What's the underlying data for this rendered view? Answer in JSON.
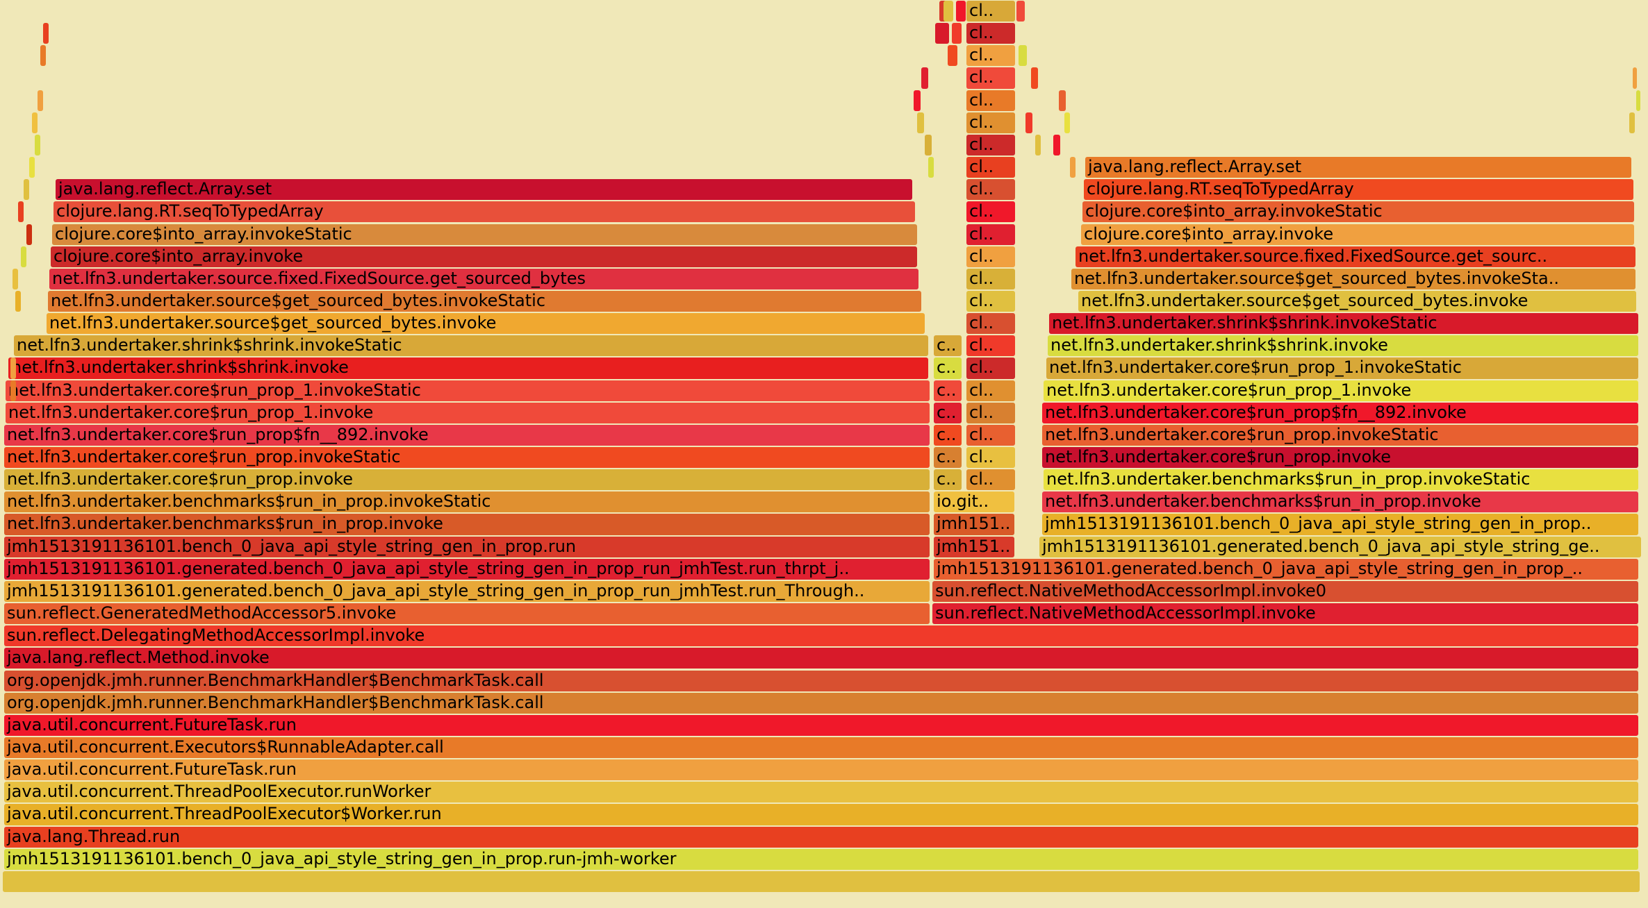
{
  "flamegraph": {
    "colors": [
      "#c8102e",
      "#e8503a",
      "#d88a3c",
      "#cc2a2a",
      "#e03040",
      "#e07a30",
      "#f0a830",
      "#d8a838",
      "#e81f1f",
      "#f04a3a",
      "#e83848",
      "#dc3a3a",
      "#f04a20",
      "#d8b038",
      "#e09030",
      "#d85a28",
      "#d83a2a",
      "#e02030",
      "#e8a838",
      "#e86030",
      "#f03a2a",
      "#d81a2a",
      "#d85030",
      "#d88030",
      "#f0182a",
      "#e87a28",
      "#f0a040",
      "#e8c040",
      "#e8b028",
      "#e84020",
      "#d8dc40",
      "#e0c040",
      "#cc3010",
      "#e8e040",
      "#f0c040"
    ],
    "frames": [
      {
        "label": "java.lang.reflect.Array.set",
        "c": 0
      },
      {
        "label": "clojure.lang.RT.seqToTypedArray",
        "c": 1
      },
      {
        "label": "clojure.core$into_array.invokeStatic",
        "c": 2
      },
      {
        "label": "clojure.core$into_array.invoke",
        "c": 3
      },
      {
        "label": "net.lfn3.undertaker.source.fixed.FixedSource.get_sourced_bytes",
        "c": 4
      },
      {
        "label": "net.lfn3.undertaker.source$get_sourced_bytes.invokeStatic",
        "c": 5
      },
      {
        "label": "net.lfn3.undertaker.source$get_sourced_bytes.invoke",
        "c": 6
      },
      {
        "label": "net.lfn3.undertaker.shrink$shrink.invokeStatic",
        "c": 7
      },
      {
        "label": "net.lfn3.undertaker.shrink$shrink.invoke",
        "c": 8
      },
      {
        "label": "net.lfn3.undertaker.core$run_prop_1.invokeStatic",
        "c": 9
      },
      {
        "label": "net.lfn3.undertaker.core$run_prop_1.invoke",
        "c": 9
      },
      {
        "label": "net.lfn3.undertaker.core$run_prop$fn__892.invoke",
        "c": 10
      },
      {
        "label": "net.lfn3.undertaker.core$run_prop.invokeStatic",
        "c": 12
      },
      {
        "label": "net.lfn3.undertaker.core$run_prop.invoke",
        "c": 13
      },
      {
        "label": "net.lfn3.undertaker.benchmarks$run_in_prop.invokeStatic",
        "c": 14
      },
      {
        "label": "net.lfn3.undertaker.benchmarks$run_in_prop.invoke",
        "c": 15
      },
      {
        "label": "jmh1513191136101.bench_0_java_api_style_string_gen_in_prop.run",
        "c": 16
      },
      {
        "label": "jmh1513191136101.generated.bench_0_java_api_style_string_gen_in_prop_run_jmhTest.run_thrpt_j..",
        "c": 17
      },
      {
        "label": "jmh1513191136101.generated.bench_0_java_api_style_string_gen_in_prop_run_jmhTest.run_Through..",
        "c": 18
      },
      {
        "label": "sun.reflect.GeneratedMethodAccessor5.invoke",
        "c": 19
      },
      {
        "label": "sun.reflect.DelegatingMethodAccessorImpl.invoke",
        "c": 20
      },
      {
        "label": "java.lang.reflect.Method.invoke",
        "c": 21
      },
      {
        "label": "org.openjdk.jmh.runner.BenchmarkHandler$BenchmarkTask.call",
        "c": 22
      },
      {
        "label": "org.openjdk.jmh.runner.BenchmarkHandler$BenchmarkTask.call",
        "c": 23
      },
      {
        "label": "java.util.concurrent.FutureTask.run",
        "c": 24
      },
      {
        "label": "java.util.concurrent.Executors$RunnableAdapter.call",
        "c": 25
      },
      {
        "label": "java.util.concurrent.FutureTask.run",
        "c": 26
      },
      {
        "label": "java.util.concurrent.ThreadPoolExecutor.runWorker",
        "c": 27
      },
      {
        "label": "java.util.concurrent.ThreadPoolExecutor$Worker.run",
        "c": 28
      },
      {
        "label": "java.lang.Thread.run",
        "c": 29
      },
      {
        "label": "jmh1513191136101.bench_0_java_api_style_string_gen_in_prop.run-jmh-worker",
        "c": 30
      },
      {
        "label": "",
        "c": 31
      },
      {
        "label": "sun.reflect.NativeMethodAccessorImpl.invoke0",
        "c": 22
      },
      {
        "label": "sun.reflect.NativeMethodAccessorImpl.invoke",
        "c": 17
      },
      {
        "label": "jmh1513191136101.generated.bench_0_java_api_style_string_gen_in_prop_..",
        "c": 19
      },
      {
        "label": "jmh1513191136101.generated.bench_0_java_api_style_string_ge..",
        "c": 31
      },
      {
        "label": "jmh1513191136101.bench_0_java_api_style_string_gen_in_prop..",
        "c": 28
      },
      {
        "label": "net.lfn3.undertaker.benchmarks$run_in_prop.invoke",
        "c": 10
      },
      {
        "label": "net.lfn3.undertaker.benchmarks$run_in_prop.invokeStatic",
        "c": 33
      },
      {
        "label": "net.lfn3.undertaker.core$run_prop.invoke",
        "c": 0
      },
      {
        "label": "net.lfn3.undertaker.core$run_prop.invokeStatic",
        "c": 19
      },
      {
        "label": "net.lfn3.undertaker.core$run_prop$fn__892.invoke",
        "c": 24
      },
      {
        "label": "net.lfn3.undertaker.core$run_prop_1.invoke",
        "c": 33
      },
      {
        "label": "net.lfn3.undertaker.core$run_prop_1.invokeStatic",
        "c": 7
      },
      {
        "label": "net.lfn3.undertaker.shrink$shrink.invoke",
        "c": 30
      },
      {
        "label": "net.lfn3.undertaker.shrink$shrink.invokeStatic",
        "c": 21
      },
      {
        "label": "net.lfn3.undertaker.source$get_sourced_bytes.invoke",
        "c": 31
      },
      {
        "label": "net.lfn3.undertaker.source$get_sourced_bytes.invokeSta..",
        "c": 14
      },
      {
        "label": "net.lfn3.undertaker.source.fixed.FixedSource.get_sourc..",
        "c": 29
      },
      {
        "label": "clojure.core$into_array.invoke",
        "c": 26
      },
      {
        "label": "clojure.core$into_array.invokeStatic",
        "c": 19
      },
      {
        "label": "clojure.lang.RT.seqToTypedArray",
        "c": 12
      },
      {
        "label": "java.lang.reflect.Array.set",
        "c": 25
      },
      {
        "label": "jmh151..",
        "c": 15
      },
      {
        "label": "jmh151..",
        "c": 16
      },
      {
        "label": "io.git..",
        "c": 34
      },
      {
        "label": "c..",
        "c": 13
      },
      {
        "label": "c..",
        "c": 23
      },
      {
        "label": "c..",
        "c": 12
      },
      {
        "label": "c..",
        "c": 17
      },
      {
        "label": "c..",
        "c": 9
      },
      {
        "label": "c..",
        "c": 30
      },
      {
        "label": "c..",
        "c": 7
      },
      {
        "label": "cl..",
        "c": 27
      },
      {
        "label": "cl..",
        "c": 19
      },
      {
        "label": "cl..",
        "c": 23
      },
      {
        "label": "cl..",
        "c": 14
      },
      {
        "label": "cl..",
        "c": 3
      },
      {
        "label": "cl..",
        "c": 20
      },
      {
        "label": "cl..",
        "c": 22
      },
      {
        "label": "cl..",
        "c": 31
      },
      {
        "label": "cl..",
        "c": 13
      },
      {
        "label": "cl..",
        "c": 26
      },
      {
        "label": "cl..",
        "c": 17
      },
      {
        "label": "cl..",
        "c": 24
      },
      {
        "label": "cl..",
        "c": 22
      },
      {
        "label": "cl..",
        "c": 29
      },
      {
        "label": "cl..",
        "c": 3
      },
      {
        "label": "cl..",
        "c": 14
      },
      {
        "label": "cl..",
        "c": 25
      },
      {
        "label": "cl..",
        "c": 9
      },
      {
        "label": "cl..",
        "c": 26
      },
      {
        "label": "cl..",
        "c": 3
      },
      {
        "label": "cl..",
        "c": 7
      },
      {
        "label": "cl..",
        "c": 14
      }
    ]
  }
}
